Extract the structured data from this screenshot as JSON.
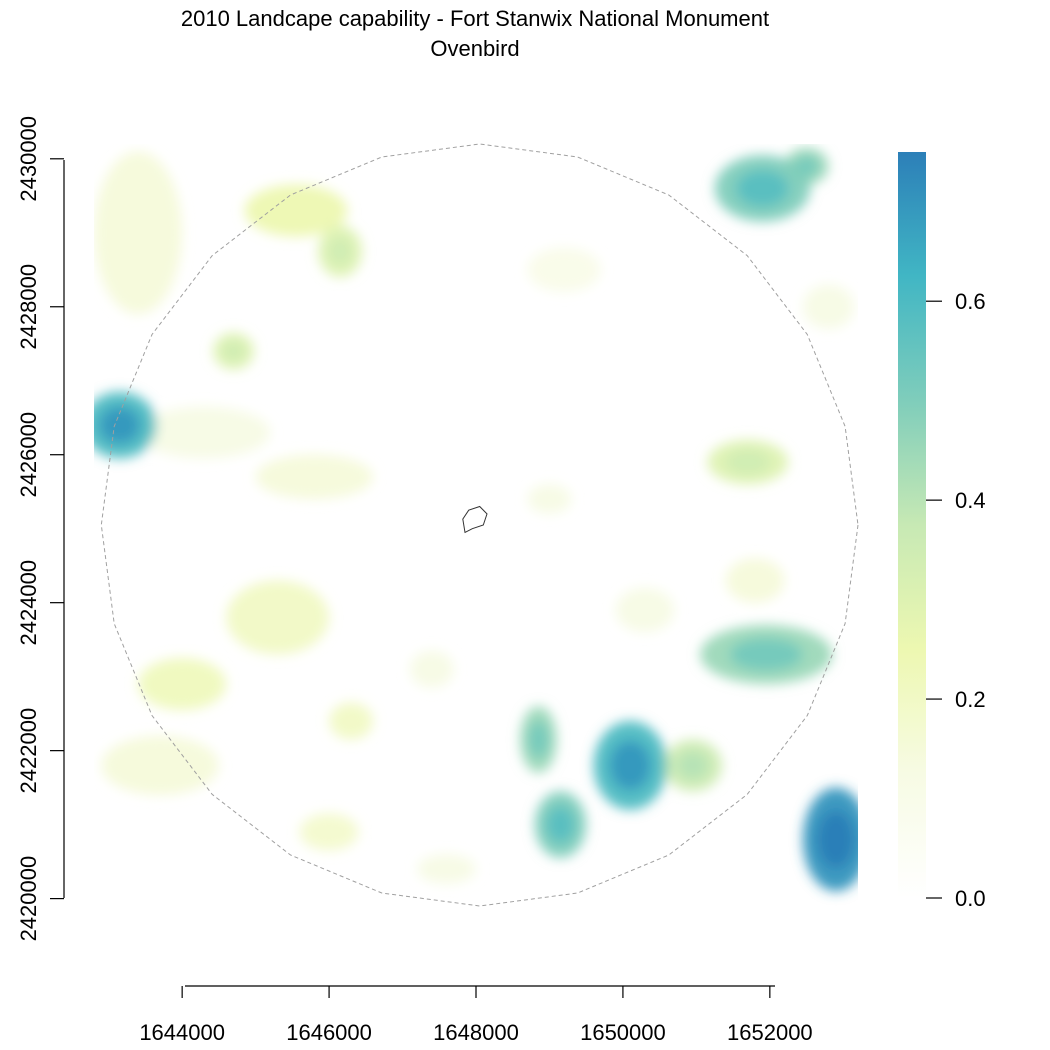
{
  "title": {
    "line1": "2010 Landcape capability - Fort Stanwix National Monument",
    "line2": "Ovenbird"
  },
  "map": {
    "x_range": [
      1642800,
      1653200
    ],
    "y_range": [
      2419900,
      2430200
    ],
    "buffer_circle": {
      "center": [
        1648050,
        2425050
      ],
      "radius": 5150,
      "style": "dashed grey"
    },
    "monument_boundary": [
      [
        1647850,
        2424950
      ],
      [
        1647950,
        2425000
      ],
      [
        1648100,
        2425050
      ],
      [
        1648150,
        2425200
      ],
      [
        1648050,
        2425300
      ],
      [
        1647900,
        2425250
      ],
      [
        1647820,
        2425130
      ]
    ],
    "high_capability_patches": [
      {
        "x": 1650100,
        "y": 2421800,
        "rx": 500,
        "ry": 600,
        "value": 0.6
      },
      {
        "x": 1649150,
        "y": 2421000,
        "rx": 350,
        "ry": 450,
        "value": 0.5
      },
      {
        "x": 1648850,
        "y": 2422150,
        "rx": 250,
        "ry": 450,
        "value": 0.45
      },
      {
        "x": 1652900,
        "y": 2420800,
        "rx": 450,
        "ry": 700,
        "value": 0.7
      },
      {
        "x": 1651950,
        "y": 2423300,
        "rx": 900,
        "ry": 400,
        "value": 0.45
      },
      {
        "x": 1650950,
        "y": 2421800,
        "rx": 400,
        "ry": 350,
        "value": 0.35
      },
      {
        "x": 1651900,
        "y": 2429600,
        "rx": 650,
        "ry": 450,
        "value": 0.5
      },
      {
        "x": 1652500,
        "y": 2429900,
        "rx": 300,
        "ry": 250,
        "value": 0.45
      },
      {
        "x": 1643150,
        "y": 2426400,
        "rx": 500,
        "ry": 450,
        "value": 0.6
      },
      {
        "x": 1651700,
        "y": 2425900,
        "rx": 550,
        "ry": 300,
        "value": 0.3
      },
      {
        "x": 1646150,
        "y": 2428750,
        "rx": 300,
        "ry": 350,
        "value": 0.3
      },
      {
        "x": 1645550,
        "y": 2429300,
        "rx": 700,
        "ry": 350,
        "value": 0.25
      },
      {
        "x": 1644700,
        "y": 2427400,
        "rx": 280,
        "ry": 250,
        "value": 0.3
      },
      {
        "x": 1643400,
        "y": 2429000,
        "rx": 600,
        "ry": 1100,
        "value": 0.15
      },
      {
        "x": 1644300,
        "y": 2426300,
        "rx": 900,
        "ry": 350,
        "value": 0.12
      },
      {
        "x": 1645800,
        "y": 2425700,
        "rx": 800,
        "ry": 300,
        "value": 0.15
      },
      {
        "x": 1645300,
        "y": 2423800,
        "rx": 700,
        "ry": 500,
        "value": 0.2
      },
      {
        "x": 1644000,
        "y": 2422900,
        "rx": 600,
        "ry": 350,
        "value": 0.22
      },
      {
        "x": 1643700,
        "y": 2421800,
        "rx": 800,
        "ry": 400,
        "value": 0.15
      },
      {
        "x": 1646300,
        "y": 2422400,
        "rx": 300,
        "ry": 250,
        "value": 0.2
      },
      {
        "x": 1646000,
        "y": 2420900,
        "rx": 400,
        "ry": 250,
        "value": 0.18
      },
      {
        "x": 1647600,
        "y": 2420400,
        "rx": 400,
        "ry": 200,
        "value": 0.12
      },
      {
        "x": 1647400,
        "y": 2423100,
        "rx": 300,
        "ry": 250,
        "value": 0.12
      },
      {
        "x": 1649200,
        "y": 2428500,
        "rx": 500,
        "ry": 300,
        "value": 0.1
      },
      {
        "x": 1651800,
        "y": 2424300,
        "rx": 400,
        "ry": 300,
        "value": 0.15
      },
      {
        "x": 1649000,
        "y": 2425400,
        "rx": 300,
        "ry": 200,
        "value": 0.12
      },
      {
        "x": 1652800,
        "y": 2428000,
        "rx": 350,
        "ry": 300,
        "value": 0.12
      },
      {
        "x": 1650300,
        "y": 2423900,
        "rx": 400,
        "ry": 300,
        "value": 0.12
      }
    ]
  },
  "x_axis": {
    "ticks": [
      {
        "value": 1644000,
        "label": "1644000"
      },
      {
        "value": 1646000,
        "label": "1646000"
      },
      {
        "value": 1648000,
        "label": "1648000"
      },
      {
        "value": 1650000,
        "label": "1650000"
      },
      {
        "value": 1652000,
        "label": "1652000"
      }
    ]
  },
  "y_axis": {
    "ticks": [
      {
        "value": 2420000,
        "label": "2420000"
      },
      {
        "value": 2422000,
        "label": "2422000"
      },
      {
        "value": 2424000,
        "label": "2424000"
      },
      {
        "value": 2426000,
        "label": "2426000"
      },
      {
        "value": 2428000,
        "label": "2428000"
      },
      {
        "value": 2430000,
        "label": "2430000"
      }
    ]
  },
  "legend": {
    "range": [
      0.0,
      0.75
    ],
    "ticks": [
      {
        "value": 0.0,
        "label": "0.0"
      },
      {
        "value": 0.2,
        "label": "0.2"
      },
      {
        "value": 0.4,
        "label": "0.4"
      },
      {
        "value": 0.6,
        "label": "0.6"
      }
    ],
    "colors": [
      "#ffffff",
      "#f7fbe4",
      "#edf8b1",
      "#c7e9b4",
      "#7fcdbb",
      "#41b6c4",
      "#2c7fb8"
    ]
  }
}
